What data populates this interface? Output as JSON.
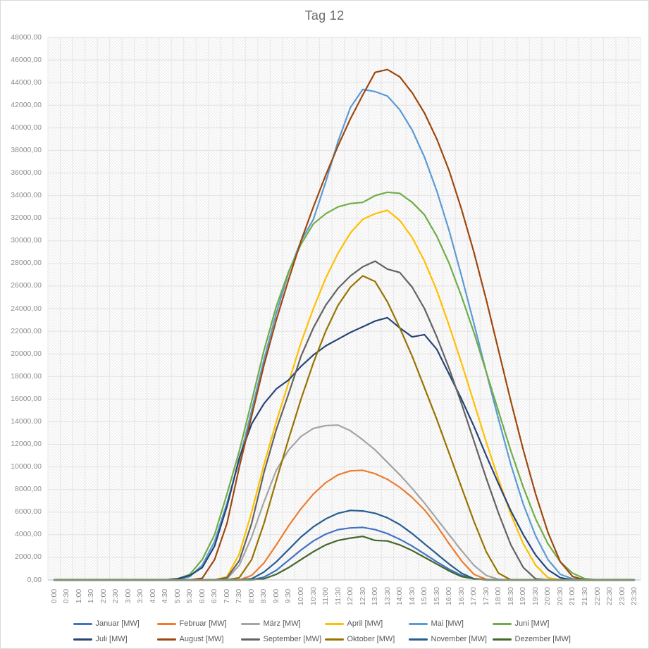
{
  "title": "Tag 12",
  "chart_data": {
    "type": "line",
    "title": "Tag 12",
    "xlabel": "",
    "ylabel": "",
    "ylim": [
      0,
      48000
    ],
    "ytick_step": 2000,
    "grid": "horizontal and vertical, light gray, hatched plot background",
    "legend_position": "bottom, two rows",
    "y_tick_labels": [
      "0,00",
      "2000,00",
      "4000,00",
      "6000,00",
      "8000,00",
      "10000,00",
      "12000,00",
      "14000,00",
      "16000,00",
      "18000,00",
      "20000,00",
      "22000,00",
      "24000,00",
      "26000,00",
      "28000,00",
      "30000,00",
      "32000,00",
      "34000,00",
      "36000,00",
      "38000,00",
      "40000,00",
      "42000,00",
      "44000,00",
      "46000,00",
      "48000,00"
    ],
    "x": [
      "0:00",
      "0:30",
      "1:00",
      "1:30",
      "2:00",
      "2:30",
      "3:00",
      "3:30",
      "4:00",
      "4:30",
      "5:00",
      "5:30",
      "6:00",
      "6:30",
      "7:00",
      "7:30",
      "8:00",
      "8:30",
      "9:00",
      "9:30",
      "10:00",
      "10:30",
      "11:00",
      "11:30",
      "12:00",
      "12:30",
      "13:00",
      "13:30",
      "14:00",
      "14:30",
      "15:00",
      "15:30",
      "16:00",
      "16:30",
      "17:00",
      "17:30",
      "18:00",
      "18:30",
      "19:00",
      "19:30",
      "20:00",
      "20:30",
      "21:00",
      "21:30",
      "22:00",
      "22:30",
      "23:00",
      "23:30"
    ],
    "series": [
      {
        "name": "Januar [MW]",
        "color": "#4472C4",
        "values": [
          0,
          0,
          0,
          0,
          0,
          0,
          0,
          0,
          0,
          0,
          0,
          0,
          0,
          0,
          0,
          0,
          0,
          250,
          850,
          1750,
          2650,
          3450,
          4050,
          4450,
          4600,
          4650,
          4450,
          4100,
          3600,
          3000,
          2300,
          1600,
          950,
          400,
          100,
          0,
          0,
          0,
          0,
          0,
          0,
          0,
          0,
          0,
          0,
          0,
          0,
          0
        ]
      },
      {
        "name": "Februar [MW]",
        "color": "#ED7D31",
        "values": [
          0,
          0,
          0,
          0,
          0,
          0,
          0,
          0,
          0,
          0,
          0,
          0,
          0,
          0,
          0,
          0,
          400,
          1500,
          3100,
          4800,
          6300,
          7600,
          8600,
          9300,
          9650,
          9700,
          9400,
          8900,
          8200,
          7300,
          6200,
          4800,
          3200,
          1700,
          500,
          50,
          0,
          0,
          0,
          0,
          0,
          0,
          0,
          0,
          0,
          0,
          0,
          0
        ]
      },
      {
        "name": "März [MW]",
        "color": "#A5A5A5",
        "values": [
          0,
          0,
          0,
          0,
          0,
          0,
          0,
          0,
          0,
          0,
          0,
          0,
          0,
          0,
          100,
          1300,
          3800,
          6900,
          9700,
          11500,
          12700,
          13400,
          13650,
          13700,
          13200,
          12400,
          11500,
          10400,
          9300,
          8100,
          6800,
          5400,
          4000,
          2600,
          1300,
          400,
          50,
          0,
          0,
          0,
          0,
          0,
          0,
          0,
          0,
          0,
          0,
          0
        ]
      },
      {
        "name": "April [MW]",
        "color": "#FFC000",
        "values": [
          0,
          0,
          0,
          0,
          0,
          0,
          0,
          0,
          0,
          0,
          0,
          0,
          0,
          0,
          300,
          2300,
          6000,
          10200,
          14000,
          17500,
          21000,
          24000,
          26700,
          28900,
          30700,
          31900,
          32400,
          32700,
          31800,
          30300,
          28200,
          25600,
          22500,
          19200,
          15700,
          12200,
          8900,
          5800,
          3200,
          1300,
          200,
          0,
          0,
          0,
          0,
          0,
          0,
          0
        ]
      },
      {
        "name": "Mai [MW]",
        "color": "#5B9BD5",
        "values": [
          0,
          0,
          0,
          0,
          0,
          0,
          0,
          0,
          0,
          0,
          0,
          300,
          1300,
          3400,
          6800,
          10600,
          15000,
          19500,
          23600,
          27200,
          30000,
          31900,
          35200,
          38800,
          41800,
          43400,
          43200,
          42800,
          41600,
          39800,
          37400,
          34400,
          30900,
          26900,
          22700,
          18400,
          14200,
          10200,
          6700,
          3900,
          1800,
          500,
          100,
          0,
          0,
          0,
          0,
          0
        ]
      },
      {
        "name": "Juni [MW]",
        "color": "#70AD47",
        "values": [
          0,
          0,
          0,
          0,
          0,
          0,
          0,
          0,
          0,
          0,
          100,
          500,
          1800,
          4000,
          7600,
          11400,
          15800,
          20300,
          24200,
          27300,
          29700,
          31500,
          32400,
          33000,
          33300,
          33400,
          34000,
          34300,
          34200,
          33400,
          32300,
          30400,
          28000,
          25100,
          21900,
          18400,
          14900,
          11400,
          8200,
          5400,
          3200,
          1600,
          600,
          100,
          0,
          0,
          0,
          0
        ]
      },
      {
        "name": "Juli [MW]",
        "color": "#264478",
        "values": [
          0,
          0,
          0,
          0,
          0,
          0,
          0,
          0,
          0,
          0,
          100,
          400,
          1100,
          3000,
          6500,
          10800,
          13800,
          15600,
          16900,
          17700,
          18900,
          19900,
          20700,
          21300,
          21900,
          22400,
          22900,
          23200,
          22300,
          21500,
          21700,
          20400,
          18200,
          16000,
          13600,
          11000,
          8500,
          6100,
          4000,
          2200,
          900,
          200,
          0,
          0,
          0,
          0,
          0,
          0
        ]
      },
      {
        "name": "August [MW]",
        "color": "#9E480E",
        "values": [
          0,
          0,
          0,
          0,
          0,
          0,
          0,
          0,
          0,
          0,
          0,
          0,
          150,
          1800,
          5000,
          10000,
          14500,
          19000,
          23000,
          26600,
          30000,
          33000,
          35800,
          38400,
          40800,
          42900,
          44900,
          45150,
          44500,
          43100,
          41300,
          39000,
          36200,
          32800,
          29000,
          24800,
          20300,
          15800,
          11500,
          7600,
          4200,
          1600,
          300,
          0,
          0,
          0,
          0,
          0
        ]
      },
      {
        "name": "September [MW]",
        "color": "#636363",
        "values": [
          0,
          0,
          0,
          0,
          0,
          0,
          0,
          0,
          0,
          0,
          0,
          0,
          0,
          0,
          200,
          1700,
          5000,
          9500,
          13300,
          16500,
          19800,
          22300,
          24300,
          25800,
          26900,
          27700,
          28200,
          27500,
          27200,
          25900,
          24000,
          21500,
          18700,
          15600,
          12300,
          9000,
          5900,
          3100,
          1100,
          100,
          0,
          0,
          0,
          0,
          0,
          0,
          0,
          0
        ]
      },
      {
        "name": "Oktober [MW]",
        "color": "#997300",
        "values": [
          0,
          0,
          0,
          0,
          0,
          0,
          0,
          0,
          0,
          0,
          0,
          0,
          0,
          0,
          0,
          200,
          1800,
          5000,
          8800,
          12500,
          16000,
          19200,
          22000,
          24300,
          25900,
          26900,
          26400,
          24600,
          22300,
          19800,
          17000,
          14200,
          11200,
          8200,
          5200,
          2500,
          600,
          0,
          0,
          0,
          0,
          0,
          0,
          0,
          0,
          0,
          0,
          0
        ]
      },
      {
        "name": "November [MW]",
        "color": "#255E91",
        "values": [
          0,
          0,
          0,
          0,
          0,
          0,
          0,
          0,
          0,
          0,
          0,
          0,
          0,
          0,
          0,
          0,
          100,
          700,
          1600,
          2700,
          3800,
          4700,
          5400,
          5900,
          6150,
          6100,
          5900,
          5500,
          4900,
          4100,
          3200,
          2300,
          1400,
          600,
          100,
          0,
          0,
          0,
          0,
          0,
          0,
          0,
          0,
          0,
          0,
          0,
          0,
          0
        ]
      },
      {
        "name": "Dezember [MW]",
        "color": "#43682B",
        "values": [
          0,
          0,
          0,
          0,
          0,
          0,
          0,
          0,
          0,
          0,
          0,
          0,
          0,
          0,
          0,
          0,
          0,
          100,
          500,
          1100,
          1800,
          2500,
          3100,
          3500,
          3700,
          3850,
          3500,
          3450,
          3100,
          2600,
          2000,
          1400,
          800,
          300,
          100,
          0,
          0,
          0,
          0,
          0,
          0,
          0,
          0,
          0,
          0,
          0,
          0,
          0
        ]
      }
    ]
  }
}
